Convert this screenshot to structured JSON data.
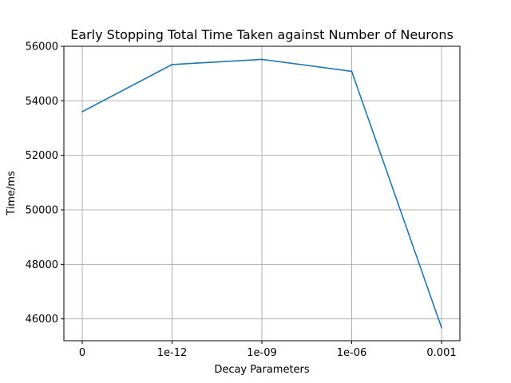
{
  "chart_data": {
    "type": "line",
    "title": "Early Stopping Total Time Taken against Number of Neurons",
    "xlabel": "Decay Parameters",
    "ylabel": "Time/ms",
    "categories": [
      "0",
      "1e-12",
      "1e-09",
      "1e-06",
      "0.001"
    ],
    "series": [
      {
        "values": [
          53600,
          55330,
          55520,
          55080,
          45680
        ],
        "color": "#1f77b4"
      }
    ],
    "yticks": [
      "46000",
      "48000",
      "50000",
      "52000",
      "54000",
      "56000"
    ],
    "ylim": [
      45200,
      56000
    ],
    "grid": true,
    "legend": "none"
  }
}
